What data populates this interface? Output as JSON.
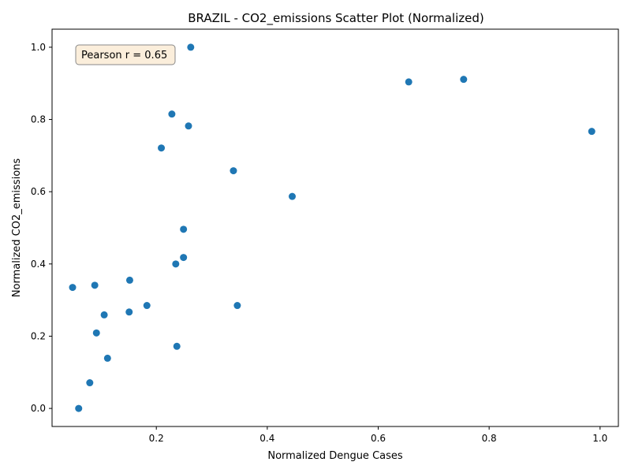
{
  "chart_data": {
    "type": "scatter",
    "title": "BRAZIL - CO2_emissions Scatter Plot (Normalized)",
    "xlabel": "Normalized Dengue Cases",
    "ylabel": "Normalized CO2_emissions",
    "xlim": [
      0.012,
      1.033
    ],
    "ylim": [
      -0.05,
      1.05
    ],
    "xticks": [
      0.2,
      0.4,
      0.6,
      0.8,
      1.0
    ],
    "xtick_labels": [
      "0.2",
      "0.4",
      "0.6",
      "0.8",
      "1.0"
    ],
    "yticks": [
      0.0,
      0.2,
      0.4,
      0.6,
      0.8,
      1.0
    ],
    "ytick_labels": [
      "0.0",
      "0.2",
      "0.4",
      "0.6",
      "0.8",
      "1.0"
    ],
    "grid": false,
    "color": "#1f77b4",
    "annotation": {
      "text": "Pearson r = 0.65",
      "placement": "top-left",
      "fill": "#fbeedb",
      "edge": "#888888"
    },
    "points": [
      {
        "x": 0.262,
        "y": 1.0
      },
      {
        "x": 0.655,
        "y": 0.904
      },
      {
        "x": 0.754,
        "y": 0.911
      },
      {
        "x": 0.228,
        "y": 0.815
      },
      {
        "x": 0.258,
        "y": 0.782
      },
      {
        "x": 0.985,
        "y": 0.767
      },
      {
        "x": 0.209,
        "y": 0.721
      },
      {
        "x": 0.339,
        "y": 0.658
      },
      {
        "x": 0.445,
        "y": 0.587
      },
      {
        "x": 0.249,
        "y": 0.496
      },
      {
        "x": 0.249,
        "y": 0.418
      },
      {
        "x": 0.235,
        "y": 0.4
      },
      {
        "x": 0.152,
        "y": 0.355
      },
      {
        "x": 0.089,
        "y": 0.341
      },
      {
        "x": 0.049,
        "y": 0.335
      },
      {
        "x": 0.183,
        "y": 0.285
      },
      {
        "x": 0.346,
        "y": 0.285
      },
      {
        "x": 0.151,
        "y": 0.267
      },
      {
        "x": 0.106,
        "y": 0.259
      },
      {
        "x": 0.092,
        "y": 0.209
      },
      {
        "x": 0.237,
        "y": 0.172
      },
      {
        "x": 0.112,
        "y": 0.139
      },
      {
        "x": 0.08,
        "y": 0.071
      },
      {
        "x": 0.06,
        "y": 0.0
      }
    ]
  }
}
